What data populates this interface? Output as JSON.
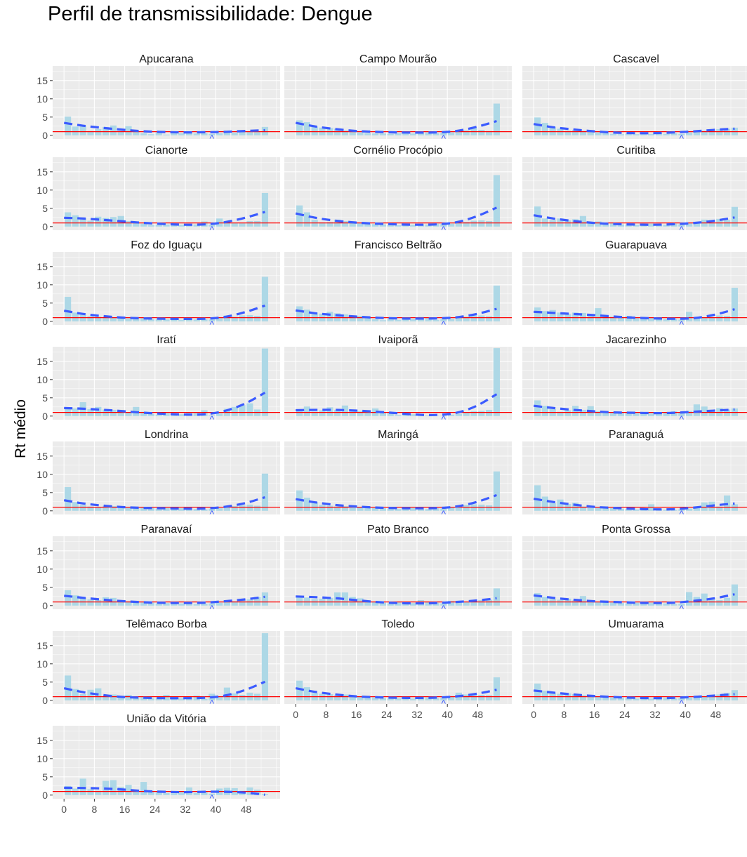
{
  "chart_data": {
    "type": "bar",
    "title": "Perfil de transmissibilidade: Dengue",
    "ylabel": "Rt médio",
    "xlabel": "",
    "ylim": [
      -1,
      19
    ],
    "xlim": [
      -3,
      57
    ],
    "y_ticks": [
      0,
      5,
      10,
      15
    ],
    "x_ticks": [
      0,
      8,
      16,
      24,
      32,
      40,
      48
    ],
    "x_tick_labels": [
      "0",
      "8",
      "16",
      "24",
      "32",
      "40",
      "48"
    ],
    "reference_line": {
      "y": 1,
      "color": "#ff0000"
    },
    "marker": {
      "x": 39,
      "symbol": "^"
    },
    "colors": {
      "bars": "#add8e6",
      "trend": "#3b5bff",
      "reference": "#ff0000",
      "panel_bg": "#ebebeb",
      "grid": "#ffffff",
      "strip": "#ffffff"
    },
    "grid": true,
    "x": [
      1,
      3,
      5,
      7,
      9,
      11,
      13,
      15,
      17,
      19,
      21,
      23,
      25,
      27,
      29,
      31,
      33,
      35,
      37,
      39,
      41,
      43,
      45,
      47,
      49,
      51,
      53
    ],
    "panels": [
      {
        "name": "Apucarana",
        "values": [
          5.1,
          2.4,
          2.6,
          1.2,
          1.7,
          2.3,
          2.7,
          1.1,
          2.5,
          1,
          0.6,
          0.3,
          0.8,
          0.2,
          0.7,
          0.6,
          0.7,
          0.5,
          0.6,
          0.4,
          0.6,
          0.8,
          0.7,
          0.9,
          1.1,
          0.9,
          2.3
        ],
        "trend": [
          3.4,
          2.6,
          2.0,
          1.5,
          1.1,
          0.9,
          0.8,
          0.85,
          0.95,
          1.2,
          1.4
        ]
      },
      {
        "name": "Campo Mourão",
        "values": [
          4.1,
          3.6,
          2.4,
          2.1,
          2,
          1.8,
          1.4,
          1.1,
          0.8,
          0.6,
          0.5,
          0.5,
          0.4,
          0.6,
          0.7,
          0.5,
          0.9,
          0.8,
          0.6,
          0.7,
          0.8,
          1.2,
          1.4,
          1.9,
          1.5,
          1.2,
          8.7
        ],
        "trend": [
          3.4,
          2.4,
          1.7,
          1.2,
          0.95,
          0.8,
          0.75,
          0.8,
          1.2,
          2.3,
          3.9
        ]
      },
      {
        "name": "Cascavel",
        "values": [
          4.9,
          3.4,
          2.3,
          1.8,
          1.3,
          1.5,
          1.3,
          1.1,
          0.8,
          0.6,
          0.4,
          0.3,
          0.5,
          0.3,
          0.3,
          0.4,
          0.6,
          0.4,
          0.6,
          0.4,
          0.8,
          1.1,
          1.3,
          1.5,
          1.7,
          1.8,
          2.1
        ],
        "trend": [
          3.1,
          2.2,
          1.6,
          1.1,
          0.75,
          0.6,
          0.6,
          0.8,
          1.1,
          1.5,
          1.8
        ]
      },
      {
        "name": "Cianorte",
        "values": [
          3.9,
          3.1,
          2.2,
          1.6,
          2.7,
          2.4,
          2.6,
          2.9,
          1.5,
          1.3,
          0.8,
          0.4,
          0.5,
          0.6,
          0.8,
          0.5,
          0.3,
          0.6,
          1.4,
          0.5,
          2.2,
          1.4,
          1.1,
          0.9,
          1.5,
          1.5,
          9.2
        ],
        "trend": [
          2.4,
          2.2,
          1.8,
          1.4,
          1.0,
          0.7,
          0.5,
          0.6,
          1.2,
          2.4,
          4.0
        ]
      },
      {
        "name": "Cornélio Procópio",
        "values": [
          5.8,
          3.9,
          1.9,
          1.2,
          1.3,
          1.9,
          1.5,
          1.1,
          1,
          0.8,
          0.7,
          0.6,
          0.5,
          0.4,
          0.5,
          0.5,
          0.7,
          0.6,
          0.8,
          0.7,
          0.8,
          0.9,
          1.3,
          1.6,
          1.7,
          1.5,
          14.1
        ],
        "trend": [
          3.6,
          2.4,
          1.6,
          1.1,
          0.8,
          0.6,
          0.5,
          0.6,
          1.2,
          2.8,
          5.2
        ]
      },
      {
        "name": "Curitiba",
        "values": [
          5.5,
          2.2,
          1.8,
          2.2,
          1.7,
          2,
          2.9,
          1.1,
          1.4,
          1,
          0.9,
          0.6,
          0.6,
          0.5,
          0.6,
          0.8,
          0.6,
          0.5,
          0.8,
          0.6,
          0.9,
          1.3,
          1.9,
          1.8,
          2.1,
          1.8,
          5.4
        ],
        "trend": [
          3.1,
          2.2,
          1.5,
          1.0,
          0.7,
          0.55,
          0.5,
          0.65,
          1.0,
          1.6,
          2.5
        ]
      },
      {
        "name": "Foz do Iguaçu",
        "values": [
          6.7,
          2.4,
          1.8,
          1.4,
          1.3,
          1.2,
          1.1,
          0.9,
          0.8,
          1.1,
          0.9,
          0.6,
          0.5,
          0.6,
          0.7,
          0.4,
          0.6,
          0.5,
          0.6,
          0.5,
          0.9,
          1.6,
          1.3,
          1.6,
          1.7,
          1.5,
          12.2
        ],
        "trend": [
          2.9,
          2.0,
          1.4,
          1.0,
          0.8,
          0.7,
          0.65,
          0.7,
          1.2,
          2.5,
          4.3
        ]
      },
      {
        "name": "Francisco Beltrão",
        "values": [
          4.1,
          3.2,
          2.4,
          2.1,
          2.6,
          2.2,
          1.9,
          1.1,
          1.5,
          1.1,
          0.6,
          0.3,
          0.8,
          0.4,
          0.9,
          0.7,
          1.2,
          1,
          0.4,
          0.6,
          0.7,
          0.9,
          1.3,
          1.7,
          1.6,
          1.4,
          9.8
        ],
        "trend": [
          3.0,
          2.2,
          1.7,
          1.3,
          1.0,
          0.8,
          0.75,
          0.8,
          1.1,
          2.0,
          3.4
        ]
      },
      {
        "name": "Guarapuava",
        "values": [
          3.8,
          2.8,
          3.1,
          2.4,
          2,
          2.4,
          2.3,
          2,
          3.6,
          1.4,
          1.3,
          1.2,
          1.5,
          1.1,
          0.8,
          1.1,
          0.9,
          0.6,
          0.7,
          0.5,
          2.6,
          1.1,
          1,
          1.2,
          1.6,
          1.5,
          9.2
        ],
        "trend": [
          2.6,
          2.3,
          2.0,
          1.7,
          1.3,
          1.0,
          0.8,
          0.7,
          0.9,
          1.8,
          3.3
        ]
      },
      {
        "name": "Iratí",
        "values": [
          2.4,
          2.1,
          3.8,
          1.9,
          2.5,
          1.8,
          1.7,
          1.7,
          1.1,
          2.5,
          1.2,
          0.6,
          0.4,
          0.8,
          0.2,
          0.5,
          0.9,
          1,
          1.6,
          0.2,
          0.8,
          2,
          2.5,
          3,
          3.5,
          1.8,
          18.5
        ],
        "trend": [
          2.2,
          2.0,
          1.7,
          1.3,
          0.9,
          0.6,
          0.4,
          0.5,
          1.4,
          3.4,
          6.4
        ]
      },
      {
        "name": "Ivaiporã",
        "values": [
          1.8,
          2.6,
          1.2,
          1.6,
          2.4,
          1.7,
          2.9,
          1.5,
          1.4,
          1.6,
          2.1,
          1.1,
          1,
          0.3,
          0.6,
          0.5,
          0.3,
          0.2,
          0.1,
          0.1,
          0.4,
          0.6,
          1,
          1.3,
          1.4,
          1.7,
          18.6
        ],
        "trend": [
          1.6,
          1.7,
          1.7,
          1.5,
          1.2,
          0.8,
          0.4,
          0.3,
          0.9,
          2.8,
          6.0
        ]
      },
      {
        "name": "Jacarezinho",
        "values": [
          4.3,
          2.8,
          1.9,
          1.2,
          1.6,
          2.8,
          1.7,
          2.7,
          1.3,
          1.2,
          1.1,
          0.9,
          1,
          0.8,
          0.9,
          0.8,
          0.9,
          1.1,
          1.3,
          1.1,
          1.4,
          3.2,
          2.6,
          1.6,
          2.2,
          1.8,
          2.1
        ],
        "trend": [
          2.8,
          2.2,
          1.7,
          1.3,
          1.0,
          0.9,
          0.8,
          0.9,
          1.2,
          1.5,
          1.8
        ]
      },
      {
        "name": "Londrina",
        "values": [
          6.5,
          2.4,
          1.6,
          1.2,
          1.1,
          1.4,
          1.3,
          1,
          0.8,
          0.9,
          1.1,
          0.8,
          0.6,
          0.8,
          0.6,
          0.7,
          0.5,
          0.5,
          0.4,
          0.6,
          0.7,
          1.2,
          1.3,
          1.5,
          1.7,
          1.4,
          10.2
        ],
        "trend": [
          2.9,
          2.0,
          1.4,
          1.0,
          0.8,
          0.7,
          0.6,
          0.65,
          1.1,
          2.1,
          3.7
        ]
      },
      {
        "name": "Maringá",
        "values": [
          5.6,
          3.6,
          2.4,
          1.6,
          1.4,
          1.2,
          1.3,
          1.1,
          1,
          0.9,
          0.8,
          0.7,
          0.6,
          0.5,
          0.7,
          0.8,
          0.6,
          0.5,
          0.7,
          0.6,
          0.9,
          1.2,
          1.6,
          1.8,
          1.7,
          1.5,
          10.8
        ],
        "trend": [
          3.2,
          2.3,
          1.6,
          1.2,
          0.9,
          0.75,
          0.7,
          0.75,
          1.2,
          2.4,
          4.3
        ]
      },
      {
        "name": "Paranaguá",
        "values": [
          7,
          3.9,
          2.1,
          3.1,
          1.9,
          2.2,
          1.2,
          1.3,
          0.8,
          0.9,
          0.8,
          0.6,
          0.5,
          0.4,
          0.6,
          1.8,
          0.5,
          0.3,
          0.2,
          0.4,
          0.6,
          0.9,
          2.3,
          2.5,
          1.2,
          4.2,
          1.8
        ],
        "trend": [
          3.3,
          2.4,
          1.7,
          1.1,
          0.8,
          0.55,
          0.4,
          0.45,
          0.9,
          1.5,
          2.0
        ]
      },
      {
        "name": "Paranavaí",
        "values": [
          4.2,
          2.8,
          2.1,
          1.7,
          1.5,
          2.3,
          2.1,
          1.4,
          1.2,
          1.1,
          0.9,
          0.8,
          0.6,
          0.7,
          0.5,
          0.6,
          0.7,
          0.4,
          0.5,
          0.6,
          0.8,
          1,
          1.2,
          1.5,
          1.7,
          2.4,
          3.6
        ],
        "trend": [
          2.7,
          2.1,
          1.6,
          1.2,
          0.9,
          0.75,
          0.7,
          0.8,
          1.2,
          1.7,
          2.4
        ]
      },
      {
        "name": "Pato Branco",
        "values": [
          2.6,
          2.2,
          1.8,
          1.9,
          2.1,
          3.6,
          3.6,
          2.4,
          2,
          1.4,
          1.1,
          0.8,
          0.6,
          0.9,
          1.1,
          0.7,
          1.5,
          1,
          0.8,
          0.6,
          1.3,
          1.1,
          0.9,
          1.2,
          1.5,
          1.6,
          4.7
        ],
        "trend": [
          2.5,
          2.3,
          2.0,
          1.5,
          1.0,
          0.7,
          0.6,
          0.7,
          1.0,
          1.4,
          2.0
        ]
      },
      {
        "name": "Ponta Grossa",
        "values": [
          3.4,
          2.4,
          1.8,
          1.6,
          1.9,
          1.4,
          2.6,
          1.3,
          1,
          1.1,
          0.9,
          0.7,
          0.6,
          0.8,
          0.7,
          0.8,
          0.5,
          0.6,
          0.4,
          0.5,
          3.7,
          2.4,
          3.3,
          1.9,
          1.5,
          2.1,
          5.8
        ],
        "trend": [
          2.8,
          2.1,
          1.6,
          1.2,
          1.0,
          0.8,
          0.7,
          0.8,
          1.3,
          2.0,
          3.1
        ]
      },
      {
        "name": "Telêmaco Borba",
        "values": [
          6.8,
          3.1,
          1.7,
          2.9,
          3.3,
          1.1,
          1.6,
          1.2,
          1.5,
          0.8,
          0.9,
          0.6,
          0.5,
          1.5,
          0.7,
          0.6,
          0.5,
          1.3,
          0.4,
          1.8,
          0.9,
          3.5,
          1.9,
          1.5,
          2.1,
          1.8,
          18.4
        ],
        "trend": [
          3.3,
          2.2,
          1.4,
          0.9,
          0.7,
          0.6,
          0.6,
          0.7,
          1.3,
          2.8,
          5.1
        ]
      },
      {
        "name": "Toledo",
        "values": [
          5.4,
          3.6,
          2,
          1.8,
          1.7,
          1.4,
          1.6,
          1.1,
          1,
          0.9,
          0.8,
          0.6,
          0.5,
          0.6,
          0.7,
          0.5,
          0.9,
          0.8,
          0.6,
          0.7,
          1.2,
          2.1,
          1.6,
          1.8,
          1.5,
          1.4,
          6.3
        ],
        "trend": [
          3.3,
          2.3,
          1.6,
          1.1,
          0.85,
          0.7,
          0.65,
          0.75,
          1.1,
          1.8,
          2.9
        ]
      },
      {
        "name": "Umuarama",
        "values": [
          4.6,
          2.6,
          2.1,
          1.8,
          1.9,
          1.7,
          1.4,
          1.3,
          1.1,
          1,
          0.8,
          0.7,
          0.6,
          0.5,
          0.6,
          0.5,
          0.6,
          0.7,
          0.5,
          0.6,
          0.8,
          1,
          1.2,
          1.4,
          1.6,
          2,
          2.8
        ],
        "trend": [
          2.7,
          2.1,
          1.6,
          1.2,
          0.9,
          0.7,
          0.6,
          0.7,
          0.95,
          1.3,
          1.7
        ]
      },
      {
        "name": "União da Vitória",
        "values": [
          2.5,
          1.8,
          4.5,
          1.6,
          1.2,
          3.9,
          4.1,
          2.2,
          2.8,
          1.5,
          3.6,
          1.2,
          1,
          0.6,
          0.5,
          0.9,
          2.1,
          0.6,
          0.9,
          0.4,
          1.8,
          2,
          1.9,
          1.2,
          2.1,
          1.5,
          0.3
        ],
        "trend": [
          2.0,
          1.95,
          1.8,
          1.5,
          1.1,
          0.9,
          0.8,
          0.9,
          0.9,
          0.7,
          0.1
        ]
      }
    ]
  }
}
